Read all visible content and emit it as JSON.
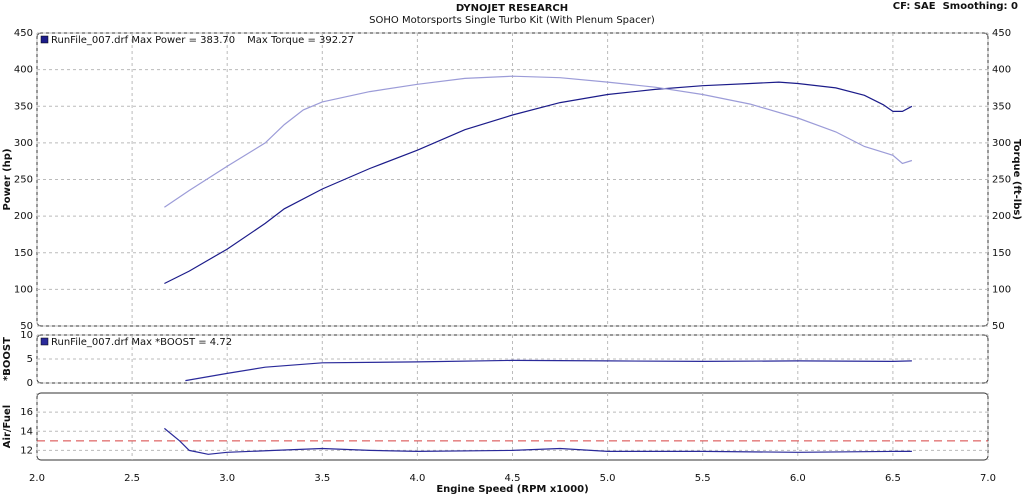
{
  "header": {
    "title": "DYNOJET RESEARCH",
    "subtitle": "SOHO Motorsports Single Turbo Kit (With Plenum Spacer)",
    "settings": "CF: SAE  Smoothing: 0"
  },
  "chart_data": [
    {
      "type": "line",
      "ylabel": "Power (hp)",
      "y2label": "Torque (ft-lbs)",
      "xlim": [
        2.0,
        7.0
      ],
      "ylim": [
        50,
        450
      ],
      "yticks": [
        50,
        100,
        150,
        200,
        250,
        300,
        350,
        400,
        450
      ],
      "y2lim": [
        50,
        450
      ],
      "y2ticks": [
        50,
        100,
        150,
        200,
        250,
        300,
        350,
        400,
        450
      ],
      "grid": true,
      "series": [
        {
          "name": "RunFile_007.drf Max Power = 383.70",
          "color": "#1c1c8a",
          "x": [
            2.67,
            2.8,
            3.0,
            3.2,
            3.3,
            3.5,
            3.75,
            4.0,
            4.25,
            4.5,
            4.75,
            5.0,
            5.25,
            5.5,
            5.75,
            5.9,
            6.0,
            6.2,
            6.35,
            6.45,
            6.5,
            6.55,
            6.6
          ],
          "values": [
            108,
            125,
            155,
            190,
            210,
            237,
            265,
            290,
            318,
            338,
            355,
            366,
            373,
            378,
            381,
            383,
            381,
            375,
            365,
            352,
            343,
            343,
            350
          ]
        },
        {
          "name": "Max Torque = 392.27",
          "color": "#9c9cd8",
          "axis": "y2",
          "x": [
            2.67,
            2.8,
            3.0,
            3.2,
            3.3,
            3.4,
            3.5,
            3.75,
            4.0,
            4.25,
            4.5,
            4.75,
            5.0,
            5.25,
            5.5,
            5.75,
            6.0,
            6.2,
            6.35,
            6.5,
            6.55,
            6.6
          ],
          "values": [
            212,
            235,
            268,
            300,
            325,
            345,
            356,
            370,
            380,
            388,
            391,
            389,
            383,
            376,
            366,
            353,
            334,
            315,
            295,
            283,
            272,
            276
          ]
        }
      ]
    },
    {
      "type": "line",
      "ylabel": "*BOOST",
      "xlim": [
        2.0,
        7.0
      ],
      "ylim": [
        0,
        10
      ],
      "yticks": [
        0,
        5,
        10
      ],
      "grid": true,
      "series": [
        {
          "name": "RunFile_007.drf Max *BOOST = 4.72",
          "color": "#2a2a9a",
          "x": [
            2.78,
            3.0,
            3.2,
            3.5,
            4.0,
            4.5,
            5.0,
            5.5,
            6.0,
            6.5,
            6.6
          ],
          "values": [
            0.5,
            2.0,
            3.3,
            4.2,
            4.4,
            4.7,
            4.6,
            4.5,
            4.6,
            4.5,
            4.6
          ]
        }
      ]
    },
    {
      "type": "line",
      "ylabel": "Air/Fuel",
      "xlabel": "Engine Speed (RPM x1000)",
      "xlim": [
        2.0,
        7.0
      ],
      "ylim": [
        11,
        18
      ],
      "yticks": [
        12,
        14,
        16
      ],
      "grid": true,
      "xticks": [
        {
          "value": 2.0,
          "label": "2.0"
        },
        {
          "value": 2.5,
          "label": "2.5"
        },
        {
          "value": 3.0,
          "label": "3.0"
        },
        {
          "value": 3.5,
          "label": "3.5"
        },
        {
          "value": 4.0,
          "label": "4.0"
        },
        {
          "value": 4.5,
          "label": "4.5"
        },
        {
          "value": 5.0,
          "label": "5.0"
        },
        {
          "value": 5.5,
          "label": "5.5"
        },
        {
          "value": 6.0,
          "label": "6.0"
        },
        {
          "value": 6.5,
          "label": "6.5"
        },
        {
          "value": 7.0,
          "label": "7.0"
        }
      ],
      "hlines": [
        {
          "value": 13,
          "color": "#d84040"
        }
      ],
      "series": [
        {
          "color": "#2a2a9a",
          "x": [
            2.67,
            2.75,
            2.8,
            2.9,
            3.0,
            3.25,
            3.5,
            3.75,
            4.0,
            4.5,
            4.75,
            5.0,
            5.5,
            6.0,
            6.5,
            6.6
          ],
          "values": [
            14.3,
            13.0,
            12.0,
            11.6,
            11.8,
            12.0,
            12.2,
            12.0,
            11.9,
            12.0,
            12.2,
            11.9,
            11.9,
            11.8,
            11.9,
            11.9
          ]
        }
      ]
    }
  ]
}
